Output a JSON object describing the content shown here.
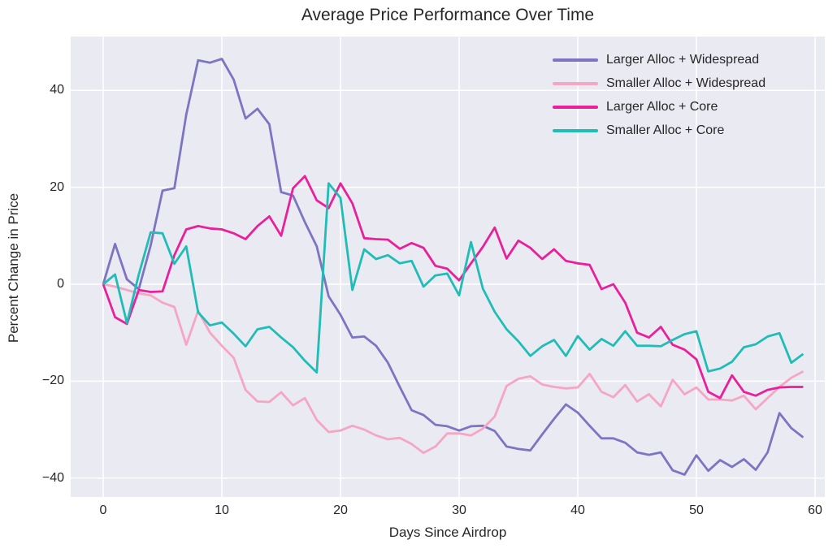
{
  "title": "Average Price Performance Over Time",
  "chart_data": {
    "type": "line",
    "title": "Average Price Performance Over Time",
    "xlabel": "Days Since Airdrop",
    "ylabel": "Percent Change in Price",
    "xlim": [
      -2.74,
      60.82
    ],
    "ylim": [
      -43.9,
      51.1
    ],
    "xticks": [
      0,
      10,
      20,
      30,
      40,
      50,
      60
    ],
    "xtick_labels": [
      "0",
      "10",
      "20",
      "30",
      "40",
      "50",
      "60"
    ],
    "yticks": [
      40,
      20,
      0,
      -20,
      -40
    ],
    "ytick_labels": [
      "40",
      "20",
      "0",
      "−20",
      "−40"
    ],
    "grid": true,
    "legend_position": "upper right",
    "colors": {
      "plot_background": "#eaeaf2",
      "grid_color": "#ffffff",
      "text_color": "#262626"
    },
    "x": [
      0,
      1,
      2,
      3,
      4,
      5,
      6,
      7,
      8,
      9,
      10,
      11,
      12,
      13,
      14,
      15,
      16,
      17,
      18,
      19,
      20,
      21,
      22,
      23,
      24,
      25,
      26,
      27,
      28,
      29,
      30,
      31,
      32,
      33,
      34,
      35,
      36,
      37,
      38,
      39,
      40,
      41,
      42,
      43,
      44,
      45,
      46,
      47,
      48,
      49,
      50,
      51,
      52,
      53,
      54,
      55,
      56,
      57,
      58,
      59
    ],
    "series": [
      {
        "name": "Larger Alloc + Widespread",
        "color": "#7d74c2",
        "values": [
          0,
          8.3,
          1,
          -1,
          8,
          19.3,
          19.8,
          35,
          46.2,
          45.7,
          46.5,
          42.2,
          34.2,
          36.2,
          33,
          19,
          18.3,
          12.8,
          7.8,
          -2.5,
          -6.3,
          -11,
          -10.8,
          -12.7,
          -16.2,
          -21.2,
          -26,
          -27,
          -29,
          -29.3,
          -30.2,
          -29.3,
          -29.2,
          -30.3,
          -33.5,
          -34,
          -34.3,
          -31,
          -27.8,
          -24.8,
          -26.5,
          -29.2,
          -31.8,
          -31.8,
          -32.7,
          -34.7,
          -35.2,
          -34.7,
          -38.4,
          -39.3,
          -35.3,
          -38.5,
          -36.3,
          -37.7,
          -36.1,
          -38.3,
          -34.7,
          -26.6,
          -29.7,
          -31.6
        ]
      },
      {
        "name": "Smaller Alloc + Widespread",
        "color": "#f4a6c3",
        "values": [
          0,
          -0.5,
          -1.2,
          -1.9,
          -2.3,
          -3.8,
          -4.7,
          -12.5,
          -5.5,
          -10,
          -12.7,
          -15.2,
          -21.8,
          -24.2,
          -24.3,
          -22.3,
          -25,
          -23.5,
          -28,
          -30.5,
          -30.2,
          -29.2,
          -30,
          -31.2,
          -32,
          -31.7,
          -33,
          -34.8,
          -33.5,
          -30.8,
          -30.8,
          -31.2,
          -29.8,
          -27.3,
          -21,
          -19.5,
          -19,
          -20.7,
          -21.2,
          -21.5,
          -21.3,
          -18.5,
          -22.2,
          -23.3,
          -20.8,
          -24.2,
          -22.7,
          -25.2,
          -19.7,
          -22.7,
          -21.3,
          -23.8,
          -23.8,
          -24,
          -23,
          -25.8,
          -23.5,
          -21.2,
          -19.3,
          -18
        ]
      },
      {
        "name": "Larger Alloc + Core",
        "color": "#e8219b",
        "values": [
          0,
          -6.8,
          -8.2,
          -1.2,
          -1.6,
          -1.5,
          6,
          11.3,
          12,
          11.5,
          11.3,
          10.5,
          9.3,
          12,
          14,
          10,
          19.8,
          22.3,
          17.3,
          15.7,
          20.8,
          16.7,
          9.5,
          9.3,
          9.2,
          7.3,
          8.5,
          7.5,
          3.8,
          3.2,
          0.8,
          4.3,
          7.7,
          11.7,
          5.3,
          9,
          7.5,
          5.2,
          7.2,
          4.8,
          4.3,
          4,
          -1,
          0,
          -3.8,
          -10,
          -11,
          -8.8,
          -12.5,
          -13.5,
          -15.5,
          -22.2,
          -23.5,
          -18.8,
          -22.2,
          -23,
          -21.8,
          -21.3,
          -21.2,
          -21.2
        ]
      },
      {
        "name": "Smaller Alloc + Core",
        "color": "#20bdb6",
        "values": [
          0,
          2,
          -8,
          2,
          10.7,
          10.5,
          4.2,
          7.8,
          -5.8,
          -8.5,
          -7.9,
          -10.2,
          -12.8,
          -9.3,
          -8.8,
          -11,
          -13,
          -15.8,
          -18.2,
          20.8,
          17.8,
          -1.2,
          7.2,
          5.2,
          6,
          4.3,
          4.8,
          -0.5,
          1.8,
          2.2,
          -2.3,
          8.7,
          -0.9,
          -5.7,
          -9.3,
          -11.8,
          -14.8,
          -12.8,
          -11.5,
          -14.8,
          -10.7,
          -13.5,
          -11.3,
          -12.7,
          -9.7,
          -12.7,
          -12.7,
          -12.8,
          -11.5,
          -10.3,
          -9.7,
          -18,
          -17.4,
          -16,
          -13,
          -12.4,
          -10.8,
          -10.1,
          -16.2,
          -14.4
        ]
      }
    ]
  }
}
